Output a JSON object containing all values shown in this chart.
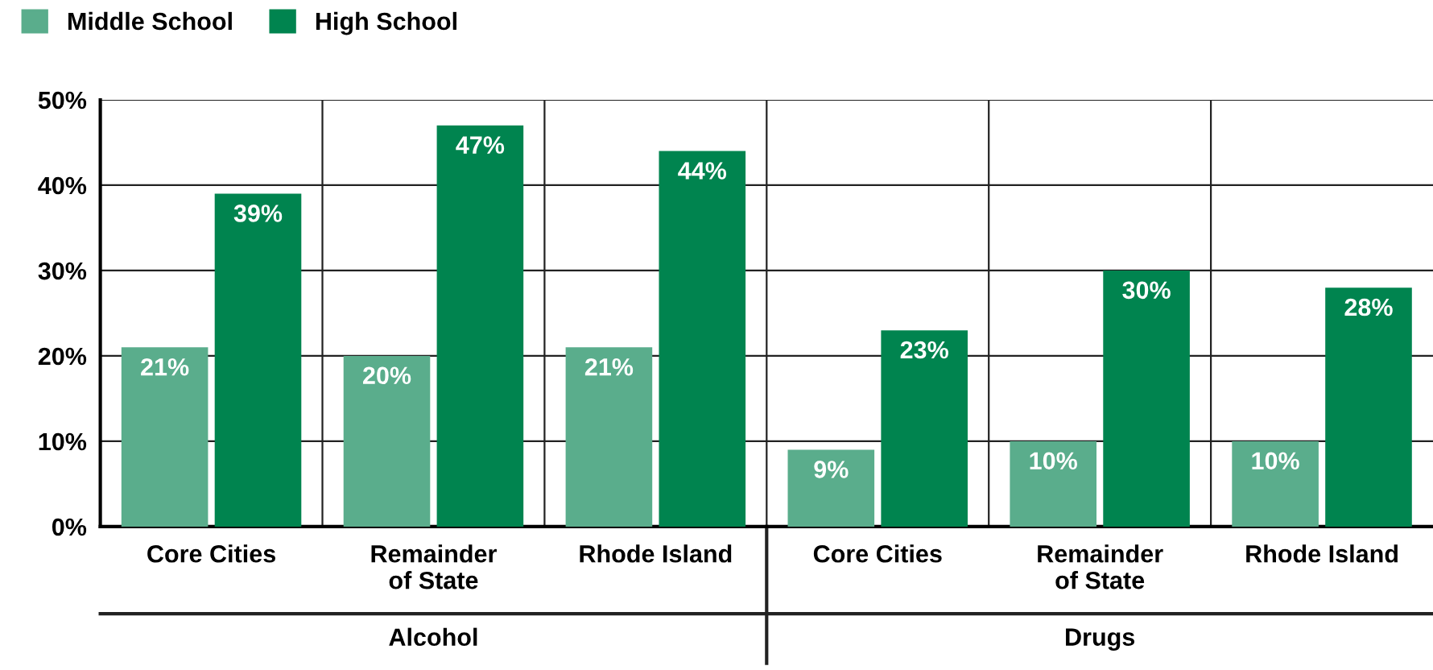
{
  "chart_data": {
    "type": "bar",
    "categories": [
      "Core Cities",
      "Remainder\nof State",
      "Rhode Island",
      "Core Cities",
      "Remainder\nof State",
      "Rhode Island"
    ],
    "series": [
      {
        "name": "Middle School",
        "color": "#5aad8c",
        "values": [
          21,
          20,
          21,
          9,
          10,
          10
        ],
        "value_labels": [
          "21%",
          "20%",
          "21%",
          "9%",
          "10%",
          "10%"
        ]
      },
      {
        "name": "High School",
        "color": "#00844f",
        "values": [
          39,
          47,
          44,
          23,
          30,
          28
        ],
        "value_labels": [
          "39%",
          "47%",
          "44%",
          "23%",
          "30%",
          "28%"
        ]
      }
    ],
    "ylim": [
      0,
      50
    ],
    "yticks": [
      {
        "value": 0,
        "label": "0%"
      },
      {
        "value": 10,
        "label": "10%"
      },
      {
        "value": 20,
        "label": "20%"
      },
      {
        "value": 30,
        "label": "30%"
      },
      {
        "value": 40,
        "label": "40%"
      },
      {
        "value": 50,
        "label": "50%"
      }
    ],
    "grid": true,
    "legend": "top left",
    "annotations": [
      "Alcohol",
      "Drugs"
    ]
  }
}
